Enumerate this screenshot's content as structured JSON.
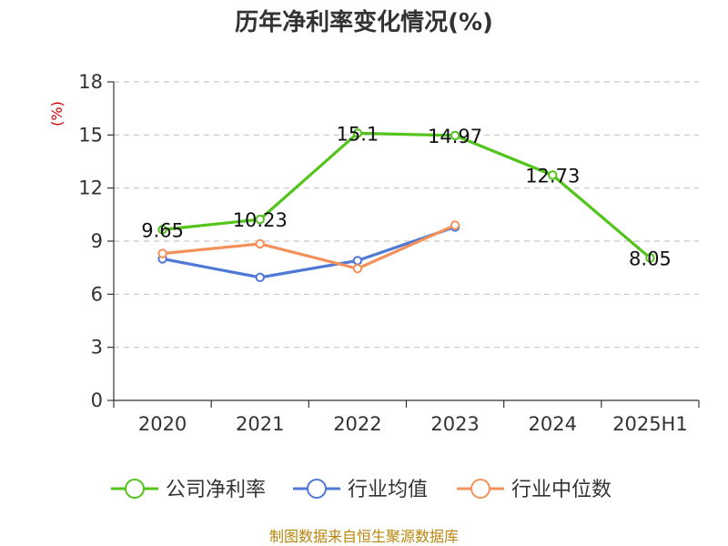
{
  "chart_data": {
    "type": "line",
    "title": "历年净利率变化情况(%)",
    "ylabel": "(%)",
    "xlabel": "",
    "categories": [
      "2020",
      "2021",
      "2022",
      "2023",
      "2024",
      "2025H1"
    ],
    "ylim": [
      0,
      18
    ],
    "yticks": [
      0,
      3,
      6,
      9,
      12,
      15,
      18
    ],
    "grid": true,
    "legend_position": "bottom",
    "series": [
      {
        "name": "公司净利率",
        "color": "#52c41a",
        "values": [
          9.65,
          10.23,
          15.1,
          14.97,
          12.73,
          8.05
        ],
        "labels": [
          "9.65",
          "10.23",
          "15.1",
          "14.97",
          "12.73",
          "8.05"
        ]
      },
      {
        "name": "行业均值",
        "color": "#4e79d6",
        "values": [
          8.0,
          6.95,
          7.9,
          9.8,
          null,
          null
        ]
      },
      {
        "name": "行业中位数",
        "color": "#f4915a",
        "values": [
          8.3,
          8.85,
          7.45,
          9.9,
          null,
          null
        ]
      }
    ]
  },
  "footer": {
    "source": "制图数据来自恒生聚源数据库"
  }
}
